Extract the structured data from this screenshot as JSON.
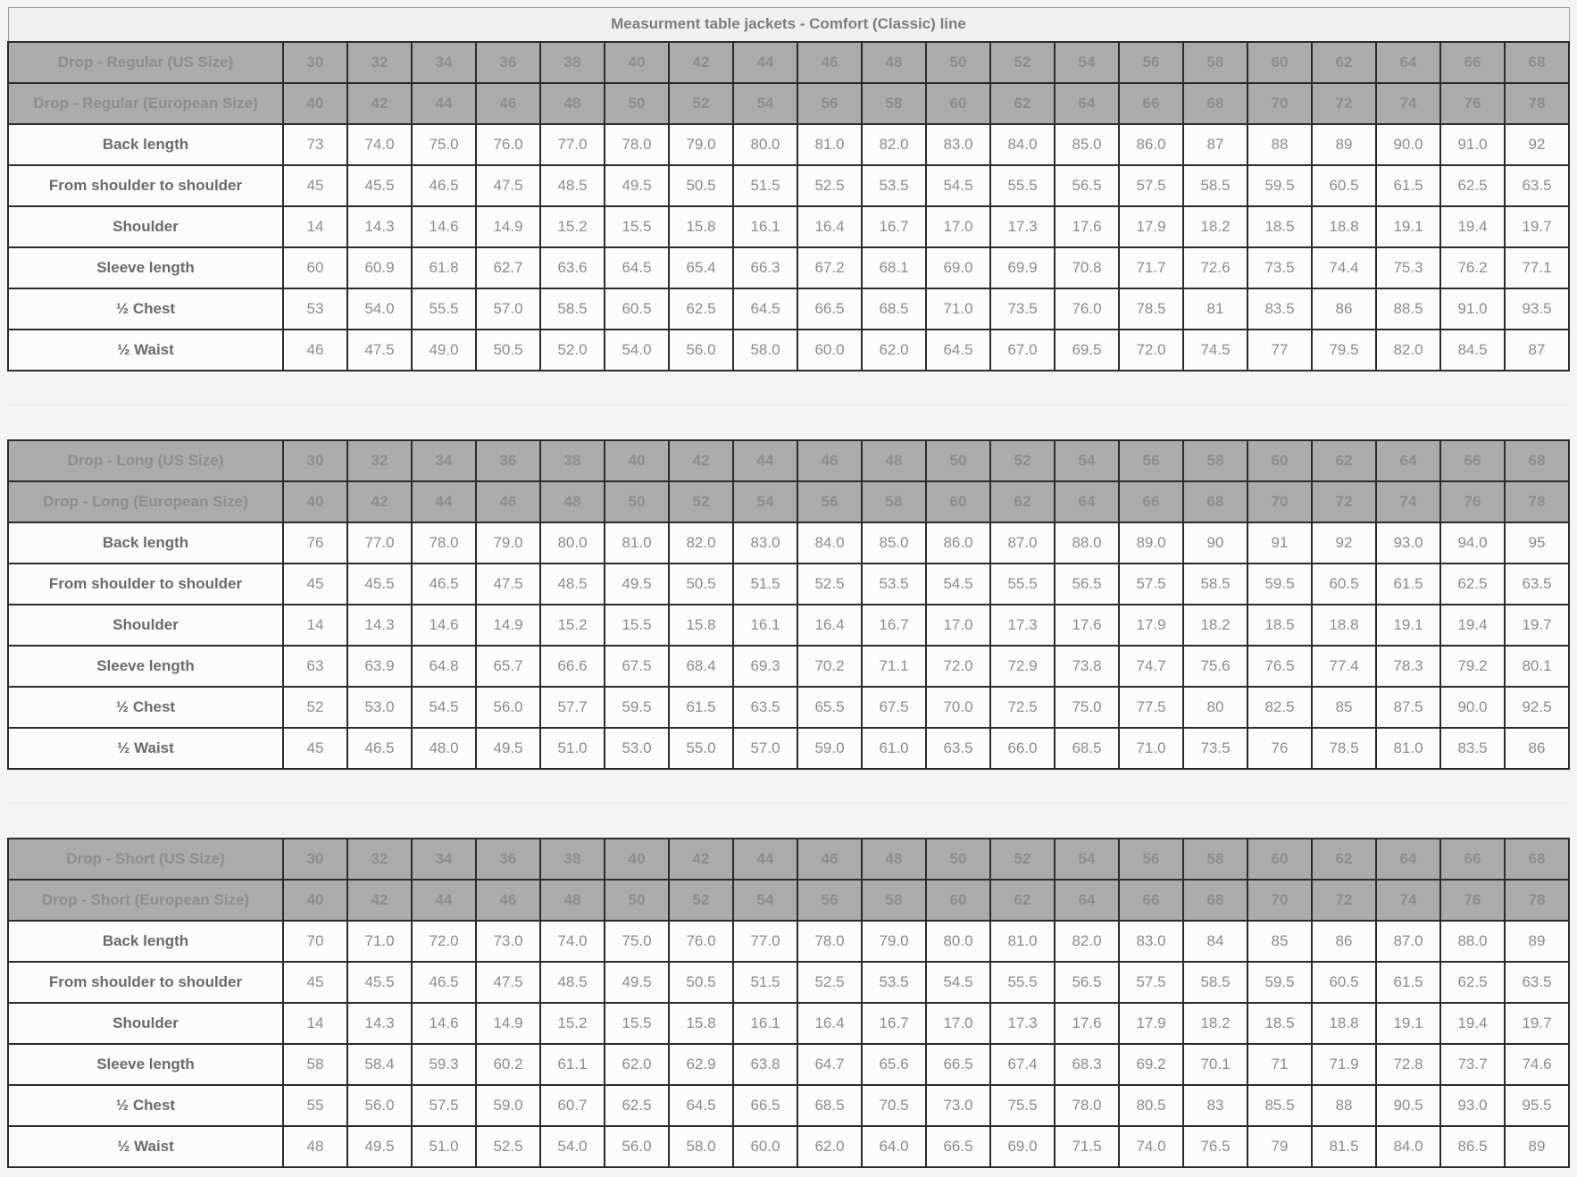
{
  "colors": {
    "page_bg": "#f3f3f3",
    "border": "#2b2b2b",
    "header_bg": "#ababab",
    "header_text": "#8d8d8d",
    "cell_bg": "#fcfcfc",
    "cell_text": "#8c8c8c",
    "label_text": "#6b6b6b",
    "title_bg": "#f0f0f0",
    "title_text": "#7d7d7d"
  },
  "table": {
    "title": "Measurment table jackets - Comfort (Classic) line",
    "column_count": 20,
    "sections": [
      {
        "id": "regular",
        "us_header_label": "Drop - Regular (US Size)",
        "eu_header_label": "Drop - Regular (European Size)",
        "us_sizes": [
          "30",
          "32",
          "34",
          "36",
          "38",
          "40",
          "42",
          "44",
          "46",
          "48",
          "50",
          "52",
          "54",
          "56",
          "58",
          "60",
          "62",
          "64",
          "66",
          "68"
        ],
        "eu_sizes": [
          "40",
          "42",
          "44",
          "46",
          "48",
          "50",
          "52",
          "54",
          "56",
          "58",
          "60",
          "62",
          "64",
          "66",
          "68",
          "70",
          "72",
          "74",
          "76",
          "78"
        ],
        "rows": [
          {
            "label": "Back length",
            "values": [
              "73",
              "74.0",
              "75.0",
              "76.0",
              "77.0",
              "78.0",
              "79.0",
              "80.0",
              "81.0",
              "82.0",
              "83.0",
              "84.0",
              "85.0",
              "86.0",
              "87",
              "88",
              "89",
              "90.0",
              "91.0",
              "92"
            ]
          },
          {
            "label": "From shoulder to shoulder",
            "values": [
              "45",
              "45.5",
              "46.5",
              "47.5",
              "48.5",
              "49.5",
              "50.5",
              "51.5",
              "52.5",
              "53.5",
              "54.5",
              "55.5",
              "56.5",
              "57.5",
              "58.5",
              "59.5",
              "60.5",
              "61.5",
              "62.5",
              "63.5"
            ]
          },
          {
            "label": "Shoulder",
            "values": [
              "14",
              "14.3",
              "14.6",
              "14.9",
              "15.2",
              "15.5",
              "15.8",
              "16.1",
              "16.4",
              "16.7",
              "17.0",
              "17.3",
              "17.6",
              "17.9",
              "18.2",
              "18.5",
              "18.8",
              "19.1",
              "19.4",
              "19.7"
            ]
          },
          {
            "label": "Sleeve length",
            "values": [
              "60",
              "60.9",
              "61.8",
              "62.7",
              "63.6",
              "64.5",
              "65.4",
              "66.3",
              "67.2",
              "68.1",
              "69.0",
              "69.9",
              "70.8",
              "71.7",
              "72.6",
              "73.5",
              "74.4",
              "75.3",
              "76.2",
              "77.1"
            ]
          },
          {
            "label": "½ Chest",
            "values": [
              "53",
              "54.0",
              "55.5",
              "57.0",
              "58.5",
              "60.5",
              "62.5",
              "64.5",
              "66.5",
              "68.5",
              "71.0",
              "73.5",
              "76.0",
              "78.5",
              "81",
              "83.5",
              "86",
              "88.5",
              "91.0",
              "93.5"
            ]
          },
          {
            "label": "½ Waist",
            "values": [
              "46",
              "47.5",
              "49.0",
              "50.5",
              "52.0",
              "54.0",
              "56.0",
              "58.0",
              "60.0",
              "62.0",
              "64.5",
              "67.0",
              "69.5",
              "72.0",
              "74.5",
              "77",
              "79.5",
              "82.0",
              "84.5",
              "87"
            ]
          }
        ]
      },
      {
        "id": "long",
        "us_header_label": "Drop - Long (US Size)",
        "eu_header_label": "Drop - Long (European Size)",
        "us_sizes": [
          "30",
          "32",
          "34",
          "36",
          "38",
          "40",
          "42",
          "44",
          "46",
          "48",
          "50",
          "52",
          "54",
          "56",
          "58",
          "60",
          "62",
          "64",
          "66",
          "68"
        ],
        "eu_sizes": [
          "40",
          "42",
          "44",
          "46",
          "48",
          "50",
          "52",
          "54",
          "56",
          "58",
          "60",
          "62",
          "64",
          "66",
          "68",
          "70",
          "72",
          "74",
          "76",
          "78"
        ],
        "rows": [
          {
            "label": "Back length",
            "values": [
              "76",
              "77.0",
              "78.0",
              "79.0",
              "80.0",
              "81.0",
              "82.0",
              "83.0",
              "84.0",
              "85.0",
              "86.0",
              "87.0",
              "88.0",
              "89.0",
              "90",
              "91",
              "92",
              "93.0",
              "94.0",
              "95"
            ]
          },
          {
            "label": "From shoulder to shoulder",
            "values": [
              "45",
              "45.5",
              "46.5",
              "47.5",
              "48.5",
              "49.5",
              "50.5",
              "51.5",
              "52.5",
              "53.5",
              "54.5",
              "55.5",
              "56.5",
              "57.5",
              "58.5",
              "59.5",
              "60.5",
              "61.5",
              "62.5",
              "63.5"
            ]
          },
          {
            "label": "Shoulder",
            "values": [
              "14",
              "14.3",
              "14.6",
              "14.9",
              "15.2",
              "15.5",
              "15.8",
              "16.1",
              "16.4",
              "16.7",
              "17.0",
              "17.3",
              "17.6",
              "17.9",
              "18.2",
              "18.5",
              "18.8",
              "19.1",
              "19.4",
              "19.7"
            ]
          },
          {
            "label": "Sleeve length",
            "values": [
              "63",
              "63.9",
              "64.8",
              "65.7",
              "66.6",
              "67.5",
              "68.4",
              "69.3",
              "70.2",
              "71.1",
              "72.0",
              "72.9",
              "73.8",
              "74.7",
              "75.6",
              "76.5",
              "77.4",
              "78.3",
              "79.2",
              "80.1"
            ]
          },
          {
            "label": "½ Chest",
            "values": [
              "52",
              "53.0",
              "54.5",
              "56.0",
              "57.7",
              "59.5",
              "61.5",
              "63.5",
              "65.5",
              "67.5",
              "70.0",
              "72.5",
              "75.0",
              "77.5",
              "80",
              "82.5",
              "85",
              "87.5",
              "90.0",
              "92.5"
            ]
          },
          {
            "label": "½ Waist",
            "values": [
              "45",
              "46.5",
              "48.0",
              "49.5",
              "51.0",
              "53.0",
              "55.0",
              "57.0",
              "59.0",
              "61.0",
              "63.5",
              "66.0",
              "68.5",
              "71.0",
              "73.5",
              "76",
              "78.5",
              "81.0",
              "83.5",
              "86"
            ]
          }
        ]
      },
      {
        "id": "short",
        "us_header_label": "Drop - Short (US Size)",
        "eu_header_label": "Drop - Short (European Size)",
        "us_sizes": [
          "30",
          "32",
          "34",
          "36",
          "38",
          "40",
          "42",
          "44",
          "46",
          "48",
          "50",
          "52",
          "54",
          "56",
          "58",
          "60",
          "62",
          "64",
          "66",
          "68"
        ],
        "eu_sizes": [
          "40",
          "42",
          "44",
          "46",
          "48",
          "50",
          "52",
          "54",
          "56",
          "58",
          "60",
          "62",
          "64",
          "66",
          "68",
          "70",
          "72",
          "74",
          "76",
          "78"
        ],
        "rows": [
          {
            "label": "Back length",
            "values": [
              "70",
              "71.0",
              "72.0",
              "73.0",
              "74.0",
              "75.0",
              "76.0",
              "77.0",
              "78.0",
              "79.0",
              "80.0",
              "81.0",
              "82.0",
              "83.0",
              "84",
              "85",
              "86",
              "87.0",
              "88.0",
              "89"
            ]
          },
          {
            "label": "From shoulder to shoulder",
            "values": [
              "45",
              "45.5",
              "46.5",
              "47.5",
              "48.5",
              "49.5",
              "50.5",
              "51.5",
              "52.5",
              "53.5",
              "54.5",
              "55.5",
              "56.5",
              "57.5",
              "58.5",
              "59.5",
              "60.5",
              "61.5",
              "62.5",
              "63.5"
            ]
          },
          {
            "label": "Shoulder",
            "values": [
              "14",
              "14.3",
              "14.6",
              "14.9",
              "15.2",
              "15.5",
              "15.8",
              "16.1",
              "16.4",
              "16.7",
              "17.0",
              "17.3",
              "17.6",
              "17.9",
              "18.2",
              "18.5",
              "18.8",
              "19.1",
              "19.4",
              "19.7"
            ]
          },
          {
            "label": "Sleeve length",
            "values": [
              "58",
              "58.4",
              "59.3",
              "60.2",
              "61.1",
              "62.0",
              "62.9",
              "63.8",
              "64.7",
              "65.6",
              "66.5",
              "67.4",
              "68.3",
              "69.2",
              "70.1",
              "71",
              "71.9",
              "72.8",
              "73.7",
              "74.6"
            ]
          },
          {
            "label": "½ Chest",
            "values": [
              "55",
              "56.0",
              "57.5",
              "59.0",
              "60.7",
              "62.5",
              "64.5",
              "66.5",
              "68.5",
              "70.5",
              "73.0",
              "75.5",
              "78.0",
              "80.5",
              "83",
              "85.5",
              "88",
              "90.5",
              "93.0",
              "95.5"
            ]
          },
          {
            "label": "½ Waist",
            "values": [
              "48",
              "49.5",
              "51.0",
              "52.5",
              "54.0",
              "56.0",
              "58.0",
              "60.0",
              "62.0",
              "64.0",
              "66.5",
              "69.0",
              "71.5",
              "74.0",
              "76.5",
              "79",
              "81.5",
              "84.0",
              "86.5",
              "89"
            ]
          }
        ]
      }
    ]
  }
}
